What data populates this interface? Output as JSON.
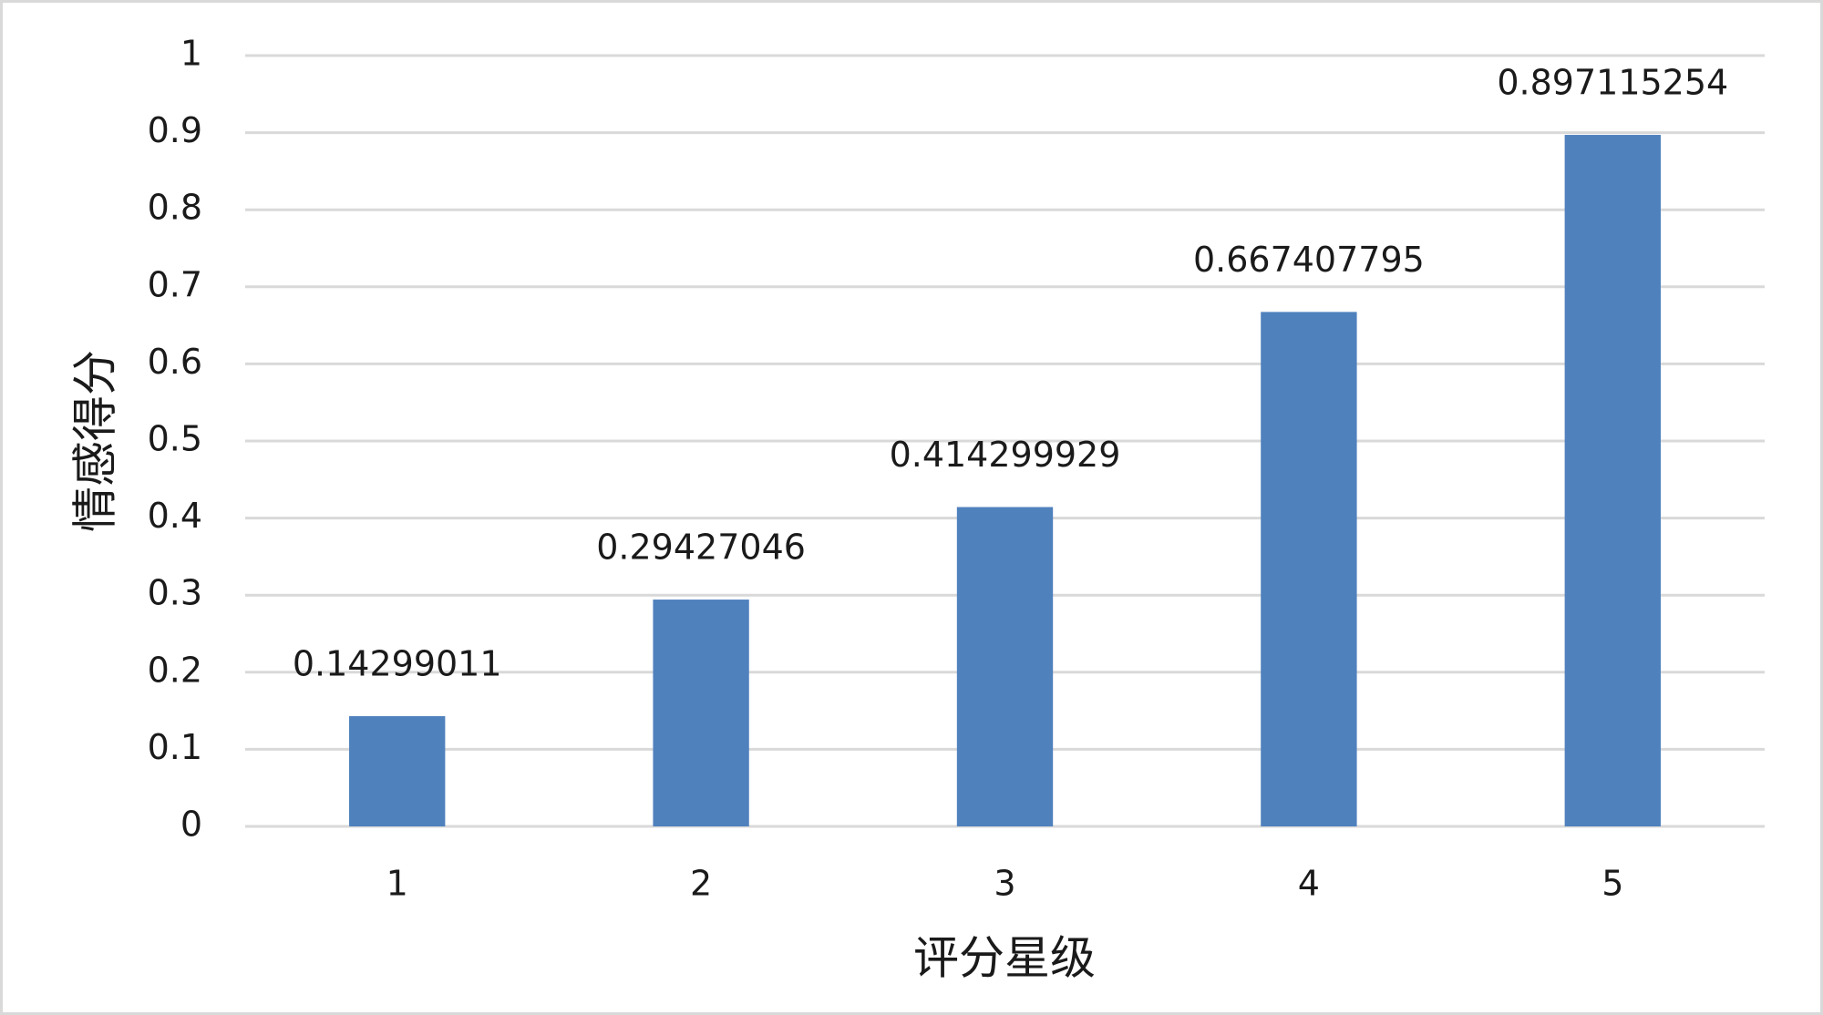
{
  "chart_data": {
    "type": "bar",
    "categories": [
      "1",
      "2",
      "3",
      "4",
      "5"
    ],
    "values": [
      0.14299011,
      0.29427046,
      0.414299929,
      0.667407795,
      0.897115254
    ],
    "color": "#4f81bd",
    "xlabel": "评分星级",
    "ylabel": "情感得分",
    "ylim": [
      0,
      1
    ],
    "yticks": [
      0,
      0.1,
      0.2,
      0.3,
      0.4,
      0.5,
      0.6,
      0.7,
      0.8,
      0.9,
      1
    ],
    "grid": true
  }
}
